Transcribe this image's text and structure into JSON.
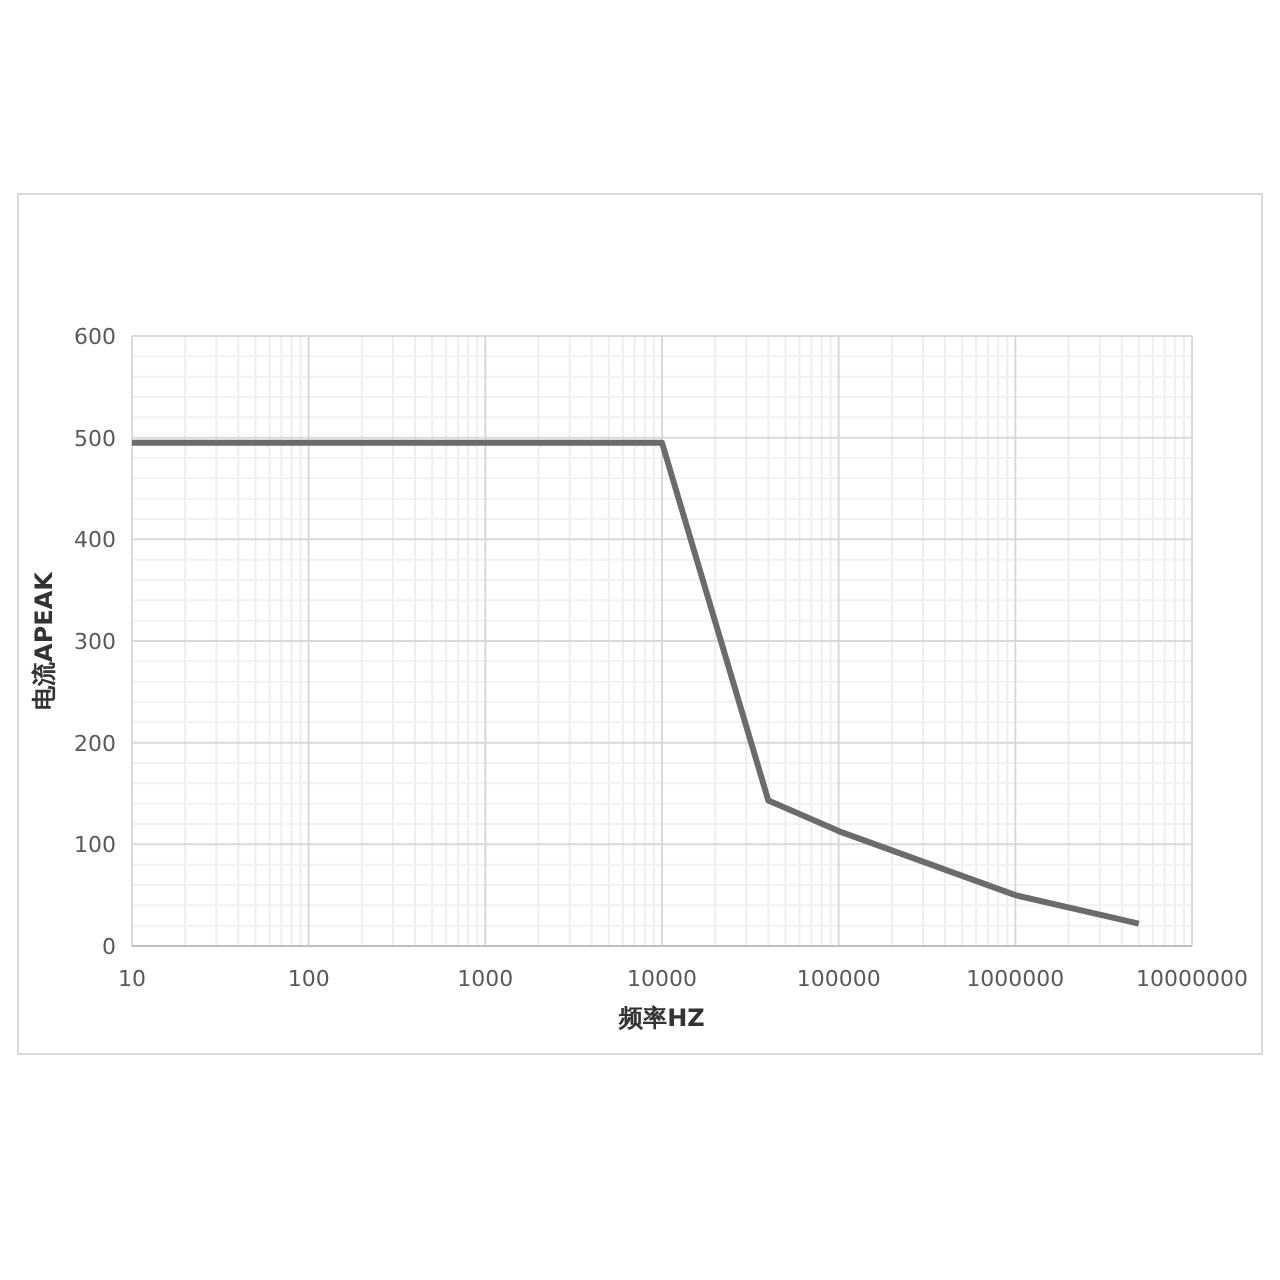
{
  "chart_data": {
    "type": "line",
    "xlabel": "频率HZ",
    "ylabel": "电流APEAK",
    "log": "x",
    "x": [
      10,
      10000,
      40000,
      100000,
      1000000,
      5000000
    ],
    "series": [
      {
        "color": "#6b6b6b",
        "values": [
          495,
          495,
          143,
          113,
          50,
          22
        ]
      }
    ],
    "xlim": [
      10,
      10000000
    ],
    "xticks": [
      10,
      100,
      1000,
      10000,
      100000,
      1000000,
      10000000
    ],
    "ylim": [
      0,
      600
    ],
    "yticks": [
      0,
      100,
      200,
      300,
      400,
      500,
      600
    ],
    "grid": true,
    "marker": "none",
    "line_style": "solid"
  }
}
